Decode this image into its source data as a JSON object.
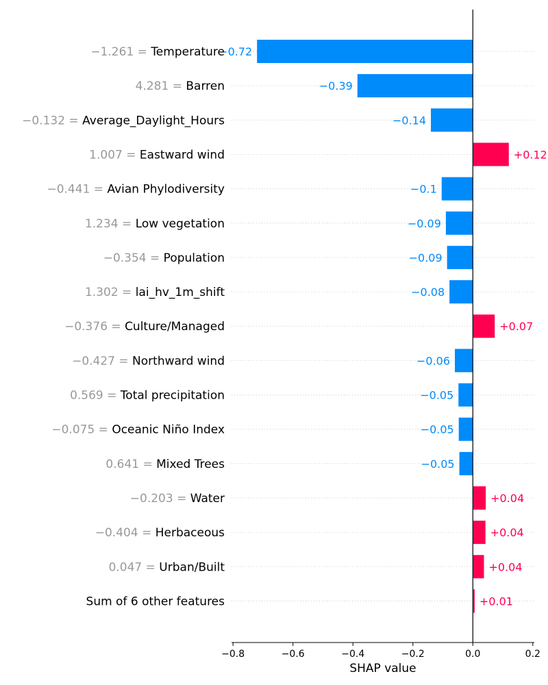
{
  "chart_data": {
    "type": "bar",
    "xlabel": "SHAP value",
    "xlim": [
      -0.805,
      0.205
    ],
    "xticks": [
      {
        "value": -0.8,
        "label": "−0.8"
      },
      {
        "value": -0.6,
        "label": "−0.6"
      },
      {
        "value": -0.4,
        "label": "−0.4"
      },
      {
        "value": -0.2,
        "label": "−0.2"
      },
      {
        "value": 0.0,
        "label": "0.0"
      },
      {
        "value": 0.2,
        "label": "0.2"
      }
    ],
    "grid": "horizontal dotted",
    "colors": {
      "positive": "#ff0051",
      "negative": "#008bfb",
      "feature_value": "#999999",
      "label": "#000000"
    },
    "features": [
      {
        "value_text": "−1.261 = ",
        "name": "Temperature",
        "shap": -0.72,
        "label": "−0.72"
      },
      {
        "value_text": "4.281 = ",
        "name": "Barren",
        "shap": -0.385,
        "label": "−0.39"
      },
      {
        "value_text": "−0.132 = ",
        "name": "Average_Daylight_Hours",
        "shap": -0.14,
        "label": "−0.14"
      },
      {
        "value_text": "1.007 = ",
        "name": "Eastward wind",
        "shap": 0.12,
        "label": "+0.12"
      },
      {
        "value_text": "−0.441 = ",
        "name": "Avian Phylodiversity",
        "shap": -0.104,
        "label": "−0.1"
      },
      {
        "value_text": "1.234 = ",
        "name": "Low vegetation",
        "shap": -0.09,
        "label": "−0.09"
      },
      {
        "value_text": "−0.354 = ",
        "name": "Population",
        "shap": -0.086,
        "label": "−0.09"
      },
      {
        "value_text": "1.302 = ",
        "name": "lai_hv_1m_shift",
        "shap": -0.078,
        "label": "−0.08"
      },
      {
        "value_text": "−0.376 = ",
        "name": "Culture/Managed",
        "shap": 0.073,
        "label": "+0.07"
      },
      {
        "value_text": "−0.427 = ",
        "name": "Northward wind",
        "shap": -0.06,
        "label": "−0.06"
      },
      {
        "value_text": "0.569 = ",
        "name": "Total precipitation",
        "shap": -0.048,
        "label": "−0.05"
      },
      {
        "value_text": "−0.075 = ",
        "name": "Oceanic Niño Index",
        "shap": -0.047,
        "label": "−0.05"
      },
      {
        "value_text": "0.641 = ",
        "name": "Mixed Trees",
        "shap": -0.045,
        "label": "−0.05"
      },
      {
        "value_text": "−0.203 = ",
        "name": "Water",
        "shap": 0.043,
        "label": "+0.04"
      },
      {
        "value_text": "−0.404 = ",
        "name": "Herbaceous",
        "shap": 0.042,
        "label": "+0.04"
      },
      {
        "value_text": "0.047 = ",
        "name": "Urban/Built",
        "shap": 0.037,
        "label": "+0.04"
      },
      {
        "value_text": "",
        "name": "Sum of 6 other features",
        "shap": 0.006,
        "label": "+0.01"
      }
    ]
  }
}
